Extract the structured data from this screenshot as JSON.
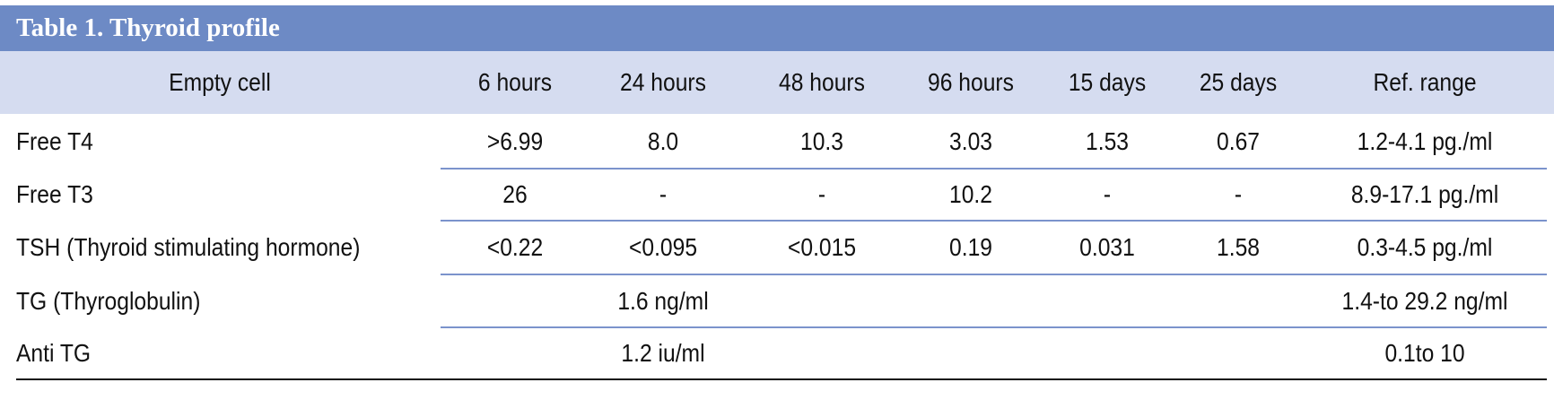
{
  "table": {
    "title": "Table 1. Thyroid profile",
    "columns": [
      "Empty cell",
      "6 hours",
      "24 hours",
      "48 hours",
      "96 hours",
      "15 days",
      "25 days",
      "Ref. range"
    ],
    "rows": [
      {
        "label": "Free T4",
        "values": [
          ">6.99",
          "8.0",
          "10.3",
          "3.03",
          "1.53",
          "0.67"
        ],
        "ref": "1.2-4.1 pg./ml"
      },
      {
        "label": "Free T3",
        "values": [
          "26",
          "-",
          "-",
          "10.2",
          "-",
          "-"
        ],
        "ref": "8.9-17.1 pg./ml"
      },
      {
        "label": "TSH (Thyroid stimulating hormone)",
        "values": [
          "<0.22",
          "<0.095",
          "<0.015",
          "0.19",
          "0.031",
          "1.58"
        ],
        "ref": "0.3-4.5 pg./ml"
      },
      {
        "label": "TG (Thyroglobulin)",
        "result": "1.6 ng/ml",
        "ref": "1.4-to 29.2 ng/ml"
      },
      {
        "label": "Anti TG",
        "result": "1.2 iu/ml",
        "ref": "0.1to 10"
      }
    ]
  }
}
